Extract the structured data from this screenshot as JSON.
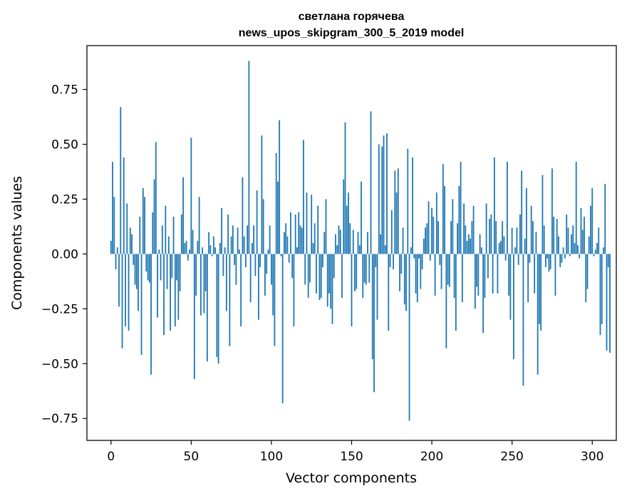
{
  "chart_data": {
    "type": "bar",
    "title": "светлана горячева",
    "subtitle": "news_upos_skipgram_300_5_2019 model",
    "xlabel": "Vector components",
    "ylabel": "Components values",
    "xlim": [
      -15,
      315
    ],
    "ylim": [
      -0.85,
      0.95
    ],
    "xticks": [
      0,
      50,
      100,
      150,
      200,
      250,
      300
    ],
    "yticks": [
      -0.75,
      -0.5,
      -0.25,
      0.0,
      0.25,
      0.5,
      0.75
    ],
    "ytick_labels": [
      "−0.75",
      "−0.50",
      "−0.25",
      "0.00",
      "0.25",
      "0.50",
      "0.75"
    ],
    "grid": false,
    "bar_color": "#1f77b4",
    "values": [
      0.06,
      0.42,
      0.26,
      -0.07,
      0.03,
      -0.24,
      0.67,
      -0.43,
      0.44,
      -0.33,
      0.23,
      -0.35,
      0.12,
      0.09,
      -0.05,
      -0.14,
      -0.16,
      -0.26,
      0.17,
      -0.46,
      0.3,
      0.26,
      -0.08,
      -0.12,
      -0.13,
      -0.55,
      0.19,
      0.34,
      0.51,
      -0.29,
      0.02,
      -0.12,
      0.13,
      -0.37,
      0.22,
      -0.16,
      0.08,
      -0.35,
      -0.11,
      0.17,
      -0.33,
      -0.12,
      -0.3,
      -0.17,
      0.18,
      0.35,
      0.05,
      0.06,
      -0.03,
      0.02,
      0.53,
      0.11,
      -0.57,
      -0.19,
      0.06,
      0.26,
      -0.28,
      0.03,
      -0.27,
      -0.17,
      -0.49,
      0.1,
      0.04,
      -0.01,
      0.08,
      0.03,
      -0.47,
      -0.5,
      0.05,
      0.21,
      -0.1,
      0.03,
      -0.26,
      0.18,
      -0.42,
      0.08,
      0.13,
      -0.05,
      -0.14,
      0.12,
      0.02,
      -0.33,
      0.35,
      0.08,
      -0.06,
      0.13,
      0.88,
      -0.22,
      0.05,
      0.13,
      -0.1,
      0.29,
      -0.3,
      -0.06,
      0.54,
      0.25,
      -0.19,
      -0.09,
      0.02,
      0.13,
      -0.14,
      -0.28,
      -0.42,
      0.46,
      0.33,
      0.61,
      -0.01,
      -0.68,
      0.1,
      0.14,
      0.08,
      -0.04,
      0.19,
      -0.11,
      -0.33,
      0.18,
      0.03,
      0.19,
      0.13,
      0.12,
      0.52,
      -0.14,
      0.28,
      -0.2,
      -0.13,
      0.27,
      0.05,
      0.14,
      -0.18,
      0.22,
      -0.21,
      -0.2,
      -0.06,
      0.1,
      0.25,
      -0.24,
      -0.18,
      -0.25,
      -0.32,
      -0.11,
      0.09,
      0.04,
      0.13,
      0.11,
      -0.2,
      0.34,
      0.6,
      0.22,
      0.28,
      0.14,
      -0.33,
      0.11,
      -0.17,
      -0.16,
      0.1,
      0.04,
      0.33,
      -0.2,
      -0.13,
      -0.14,
      0.1,
      -0.13,
      0.65,
      -0.48,
      -0.63,
      -0.06,
      -0.3,
      0.5,
      0.09,
      0.49,
      0.54,
      0.04,
      0.55,
      -0.35,
      -0.06,
      0.2,
      -0.07,
      0.38,
      0.28,
      0.39,
      -0.17,
      -0.09,
      0.12,
      -0.23,
      -0.26,
      0.48,
      -0.76,
      0.03,
      0.44,
      -0.02,
      -0.18,
      -0.22,
      -0.02,
      -0.16,
      -0.07,
      0.07,
      0.12,
      0.14,
      0.24,
      -0.03,
      0.21,
      0.17,
      -0.19,
      0.28,
      0.15,
      -0.05,
      -0.16,
      0.41,
      0.31,
      -0.43,
      -0.14,
      -0.15,
      0.15,
      0.25,
      -0.2,
      -0.35,
      0.14,
      0.31,
      0.42,
      -0.22,
      0.23,
      0.13,
      0.06,
      0.09,
      0.07,
      0.15,
      0.22,
      -0.25,
      -0.15,
      -0.19,
      0.09,
      0.03,
      -0.36,
      -0.2,
      0.23,
      -0.11,
      0.16,
      0.18,
      -0.18,
      0.44,
      0.15,
      -0.18,
      0.05,
      0.06,
      0.15,
      0.08,
      -0.03,
      0.42,
      -0.19,
      -0.3,
      0.12,
      -0.48,
      0.03,
      0.12,
      -0.05,
      0.18,
      0.38,
      -0.6,
      0.07,
      0.3,
      -0.22,
      -0.04,
      0.22,
      0.15,
      -0.18,
      0.1,
      -0.55,
      -0.32,
      -0.35,
      0.36,
      0.13,
      -0.06,
      -0.02,
      -0.08,
      -0.07,
      0.39,
      0.17,
      -0.19,
      0.16,
      0.08,
      -0.06,
      -0.04,
      0.03,
      -0.02,
      0.18,
      0.12,
      -0.01,
      0.09,
      0.13,
      0.05,
      0.42,
      0.04,
      -0.02,
      0.21,
      0.11,
      0.17,
      -0.22,
      -0.16,
      0.08,
      0.22,
      0.3,
      -0.01,
      0.02,
      0.05,
      0.12,
      -0.37,
      -0.32,
      0.03,
      0.32,
      -0.44,
      -0.06,
      -0.45
    ]
  }
}
